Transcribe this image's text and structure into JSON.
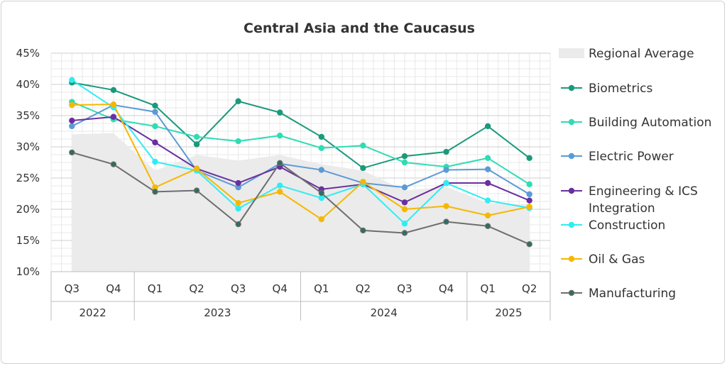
{
  "chart_data": {
    "type": "line",
    "title": "Central Asia and the Caucasus",
    "xlabel": "",
    "ylabel": "",
    "ylim": [
      0.1,
      0.45
    ],
    "yticks": [
      "10%",
      "15%",
      "20%",
      "25%",
      "30%",
      "35%",
      "40%",
      "45%"
    ],
    "grid": true,
    "legend_position": "right",
    "categories": [
      "Q3",
      "Q4",
      "Q1",
      "Q2",
      "Q3",
      "Q4",
      "Q1",
      "Q2",
      "Q3",
      "Q4",
      "Q1",
      "Q2"
    ],
    "year_groups": [
      {
        "label": "2022",
        "span": 2
      },
      {
        "label": "2023",
        "span": 4
      },
      {
        "label": "2024",
        "span": 4
      },
      {
        "label": "2025",
        "span": 2
      }
    ],
    "area": {
      "name": "Regional Average",
      "color": "#ebebeb",
      "values": [
        0.32,
        0.322,
        0.262,
        0.287,
        0.278,
        0.287,
        0.272,
        0.262,
        0.23,
        0.236,
        0.21,
        0.208
      ]
    },
    "series": [
      {
        "name": "Biometrics",
        "color": "#1a9a7b",
        "values": [
          0.403,
          0.391,
          0.366,
          0.304,
          0.373,
          0.355,
          0.316,
          0.266,
          0.285,
          0.292,
          0.333,
          0.282
        ]
      },
      {
        "name": "Building Automation",
        "color": "#2fdcb4",
        "values": [
          0.372,
          0.344,
          0.333,
          0.316,
          0.309,
          0.318,
          0.298,
          0.302,
          0.275,
          0.268,
          0.282,
          0.24
        ]
      },
      {
        "name": "Electric Power",
        "color": "#5b9bd5",
        "values": [
          0.333,
          0.367,
          0.356,
          0.262,
          0.235,
          0.273,
          0.263,
          0.242,
          0.235,
          0.263,
          0.264,
          0.224
        ]
      },
      {
        "name": "Engineering & ICS Integration",
        "color": "#6a2fa0",
        "values": [
          0.342,
          0.348,
          0.307,
          0.265,
          0.242,
          0.268,
          0.232,
          0.24,
          0.211,
          0.242,
          0.242,
          0.214
        ]
      },
      {
        "name": "Construction",
        "color": "#30ecf2",
        "values": [
          0.407,
          0.363,
          0.276,
          0.262,
          0.201,
          0.238,
          0.218,
          0.24,
          0.177,
          0.242,
          0.214,
          0.202
        ]
      },
      {
        "name": "Oil & Gas",
        "color": "#f5b800",
        "values": [
          0.367,
          0.368,
          0.235,
          0.265,
          0.21,
          0.228,
          0.184,
          0.244,
          0.2,
          0.205,
          0.19,
          0.204
        ]
      },
      {
        "name": "Manufacturing",
        "color": "#6e6e6e",
        "marker_fill": "#2e6e62",
        "values": [
          0.291,
          0.272,
          0.228,
          0.23,
          0.176,
          0.274,
          0.226,
          0.166,
          0.162,
          0.18,
          0.173,
          0.144
        ]
      }
    ],
    "legend": [
      {
        "label": "Regional Average",
        "kind": "area"
      },
      {
        "label": "Biometrics",
        "kind": "line"
      },
      {
        "label": "Building Automation",
        "kind": "line"
      },
      {
        "label": "Electric Power",
        "kind": "line"
      },
      {
        "label": "Engineering & ICS",
        "label2": "Integration",
        "kind": "line"
      },
      {
        "label": "Construction",
        "kind": "line"
      },
      {
        "label": "Oil & Gas",
        "kind": "line"
      },
      {
        "label": "Manufacturing",
        "kind": "line"
      }
    ]
  }
}
